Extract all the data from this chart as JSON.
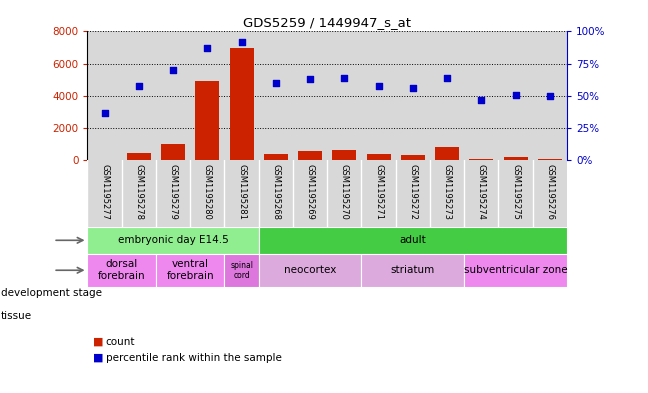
{
  "title": "GDS5259 / 1449947_s_at",
  "samples": [
    "GSM1195277",
    "GSM1195278",
    "GSM1195279",
    "GSM1195280",
    "GSM1195281",
    "GSM1195268",
    "GSM1195269",
    "GSM1195270",
    "GSM1195271",
    "GSM1195272",
    "GSM1195273",
    "GSM1195274",
    "GSM1195275",
    "GSM1195276"
  ],
  "counts": [
    30,
    430,
    1000,
    4900,
    7000,
    420,
    600,
    650,
    420,
    320,
    850,
    80,
    230,
    100
  ],
  "percentile": [
    37,
    58,
    70,
    87,
    92,
    60,
    63,
    64,
    58,
    56,
    64,
    47,
    51,
    50
  ],
  "bar_color": "#cc2200",
  "dot_color": "#0000cc",
  "ylim_left": [
    0,
    8000
  ],
  "ylim_right": [
    0,
    100
  ],
  "yticks_left": [
    0,
    2000,
    4000,
    6000,
    8000
  ],
  "yticks_right": [
    0,
    25,
    50,
    75,
    100
  ],
  "ytick_labels_left": [
    "0",
    "2000",
    "4000",
    "6000",
    "8000"
  ],
  "ytick_labels_right": [
    "0%",
    "25%",
    "50%",
    "75%",
    "100%"
  ],
  "development_stages": [
    {
      "label": "embryonic day E14.5",
      "start": 0,
      "end": 4,
      "color": "#90ee90"
    },
    {
      "label": "adult",
      "start": 5,
      "end": 13,
      "color": "#44cc44"
    }
  ],
  "tissues": [
    {
      "label": "dorsal\nforebrain",
      "start": 0,
      "end": 1,
      "color": "#ee88ee"
    },
    {
      "label": "ventral\nforebrain",
      "start": 2,
      "end": 3,
      "color": "#ee88ee"
    },
    {
      "label": "spinal\ncord",
      "start": 4,
      "end": 4,
      "color": "#dd77dd"
    },
    {
      "label": "neocortex",
      "start": 5,
      "end": 7,
      "color": "#ddaadd"
    },
    {
      "label": "striatum",
      "start": 8,
      "end": 10,
      "color": "#ddaadd"
    },
    {
      "label": "subventricular zone",
      "start": 11,
      "end": 13,
      "color": "#ee88ee"
    }
  ],
  "legend_count_color": "#cc2200",
  "legend_pct_color": "#0000cc",
  "plot_bg_color": "#d8d8d8",
  "tick_bg_color": "#d8d8d8",
  "white": "#ffffff"
}
